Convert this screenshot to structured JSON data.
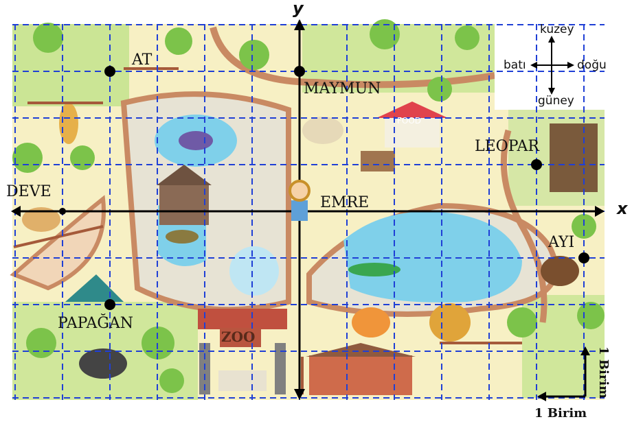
{
  "axes": {
    "x_label": "x",
    "y_label": "y"
  },
  "compass": {
    "north": "kuzey",
    "south": "güney",
    "west": "batı",
    "east": "doğu"
  },
  "unit": {
    "horizontal": "1 Birim",
    "vertical": "1 Birim"
  },
  "points": [
    {
      "id": "at",
      "name": "AT",
      "x": -4,
      "y": 3
    },
    {
      "id": "maymun",
      "name": "MAYMUN",
      "x": 0,
      "y": 3
    },
    {
      "id": "leopar",
      "name": "LEOPAR",
      "x": 5,
      "y": 1
    },
    {
      "id": "deve",
      "name": "DEVE",
      "x": -5,
      "y": 0
    },
    {
      "id": "emre",
      "name": "EMRE",
      "x": 0,
      "y": 0
    },
    {
      "id": "ayi",
      "name": "AYI",
      "x": 6,
      "y": -1
    },
    {
      "id": "papagan",
      "name": "PAPAĞAN",
      "x": -4,
      "y": -2
    }
  ],
  "map_signs": {
    "zoo": "ZOO",
    "food": "FOOD"
  },
  "colors": {
    "grid": "#1f3fd6",
    "axis": "#000000",
    "point": "#000000",
    "map_bg": "#f7f0c4",
    "path": "#c98a63",
    "water": "#7fd0ea",
    "grass": "#9fd66b"
  }
}
